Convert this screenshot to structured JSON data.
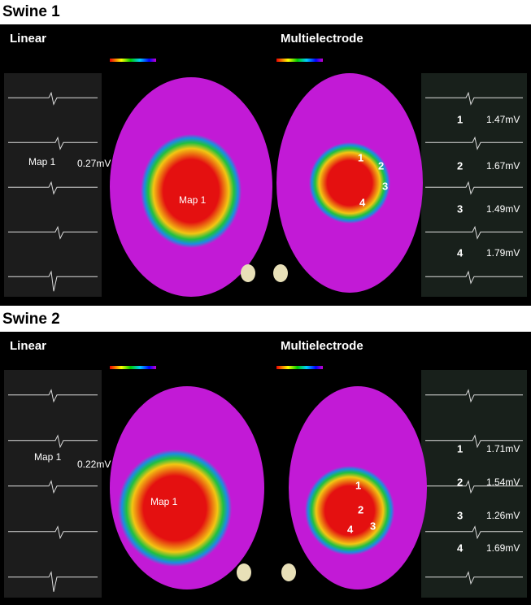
{
  "panels": [
    {
      "title": "Swine 1",
      "linear": {
        "label": "Linear",
        "trace_label": "Map 1",
        "trace_value": "0.27mV",
        "map_label": "Map 1"
      },
      "multi": {
        "label": "Multielectrode",
        "points": [
          {
            "num": "1",
            "value": "1.47mV"
          },
          {
            "num": "2",
            "value": "1.67mV"
          },
          {
            "num": "3",
            "value": "1.49mV"
          },
          {
            "num": "4",
            "value": "1.79mV"
          }
        ]
      }
    },
    {
      "title": "Swine 2",
      "linear": {
        "label": "Linear",
        "trace_label": "Map 1",
        "trace_value": "0.22mV",
        "map_label": "Map 1"
      },
      "multi": {
        "label": "Multielectrode",
        "points": [
          {
            "num": "1",
            "value": "1.71mV"
          },
          {
            "num": "2",
            "value": "1.54mV"
          },
          {
            "num": "3",
            "value": "1.26mV"
          },
          {
            "num": "4",
            "value": "1.69mV"
          }
        ]
      }
    }
  ]
}
